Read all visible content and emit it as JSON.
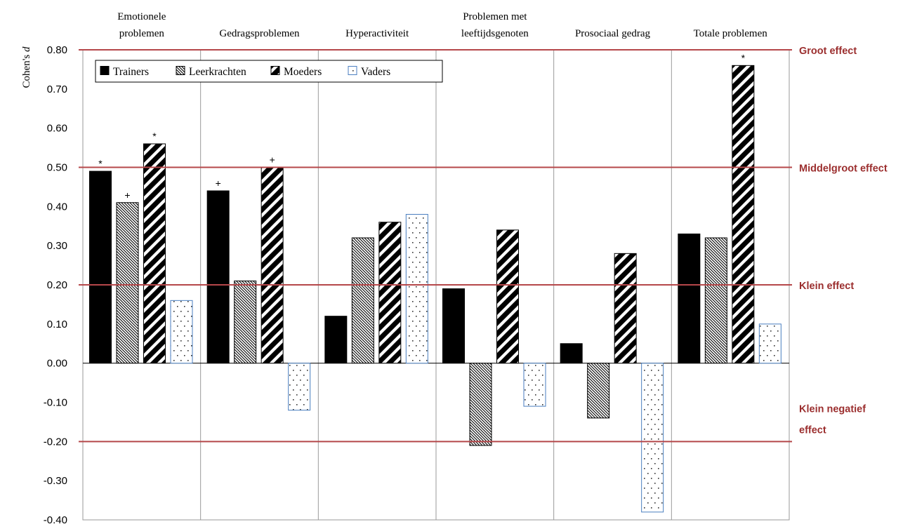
{
  "chart_data": {
    "type": "bar",
    "ylabel": "Cohen's d",
    "ylim": [
      -0.4,
      0.8
    ],
    "yticks": [
      "0.80",
      "0.70",
      "0.60",
      "0.50",
      "0.40",
      "0.30",
      "0.20",
      "0.10",
      "0.00",
      "-0.10",
      "-0.20",
      "-0.30",
      "-0.40"
    ],
    "categories": [
      [
        "Emotionele",
        "problemen"
      ],
      [
        "Gedragsproblemen"
      ],
      [
        "Hyperactiviteit"
      ],
      [
        "Problemen met",
        "leeftijdsgenoten"
      ],
      [
        "Prosociaal gedrag"
      ],
      [
        "Totale problemen"
      ]
    ],
    "series": [
      {
        "name": "Trainers",
        "pattern": "solid",
        "values": [
          0.49,
          0.44,
          0.12,
          0.19,
          0.05,
          0.33
        ],
        "markers": [
          "*",
          "+",
          "",
          "",
          "",
          ""
        ]
      },
      {
        "name": "Leerkrachten",
        "pattern": "hatch",
        "values": [
          0.41,
          0.21,
          0.32,
          -0.21,
          -0.14,
          0.32
        ],
        "markers": [
          "+",
          "",
          "",
          "",
          "",
          ""
        ]
      },
      {
        "name": "Moeders",
        "pattern": "wide-stripe",
        "values": [
          0.56,
          0.5,
          0.36,
          0.34,
          0.28,
          0.76
        ],
        "markers": [
          "*",
          "+",
          "",
          "",
          "",
          "*"
        ]
      },
      {
        "name": "Vaders",
        "pattern": "dots",
        "values": [
          0.16,
          -0.12,
          0.38,
          -0.11,
          -0.38,
          0.1
        ],
        "markers": [
          "",
          "",
          "",
          "",
          "",
          ""
        ]
      }
    ],
    "reference_lines": [
      {
        "value": 0.8,
        "label": [
          "Groot effect"
        ]
      },
      {
        "value": 0.5,
        "label": [
          "Middelgroot effect"
        ]
      },
      {
        "value": 0.2,
        "label": [
          "Klein effect"
        ]
      },
      {
        "value": -0.2,
        "label": [
          "Klein  negatief",
          "effect"
        ]
      }
    ],
    "legend_position": "top-left",
    "grid": "vertical separators between categories",
    "colors": {
      "trainers": "#000000",
      "moeders": "#000000",
      "vaders_border": "#4a7ec0",
      "reference_line": "#b5474a",
      "reference_label": "#9b2e2e",
      "separator": "#9a9a9a"
    }
  }
}
